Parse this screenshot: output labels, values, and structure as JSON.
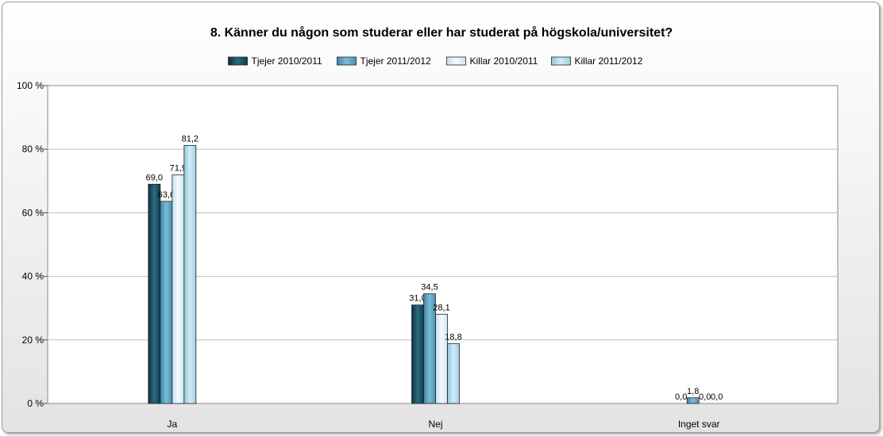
{
  "chart_data": {
    "type": "bar",
    "title": "8. Känner du någon som studerar eller har studerat på högskola/universitet?",
    "categories": [
      "Ja",
      "Nej",
      "Inget svar"
    ],
    "series": [
      {
        "name": "Tjejer 2010/2011",
        "values": [
          "69,0",
          "31,0",
          "0,0"
        ],
        "numeric": [
          69.0,
          31.0,
          0.0
        ],
        "color": "#1c4f63"
      },
      {
        "name": "Tjejer 2011/2012",
        "values": [
          "63,6",
          "34,5",
          "1,8"
        ],
        "numeric": [
          63.6,
          34.5,
          1.8
        ],
        "color": "#5aa3c3"
      },
      {
        "name": "Killar 2010/2011",
        "values": [
          "71,9",
          "28,1",
          "0,0"
        ],
        "numeric": [
          71.9,
          28.1,
          0.0
        ],
        "color": "#dcecf4"
      },
      {
        "name": "Killar 2011/2012",
        "values": [
          "81,2",
          "18,8",
          "0,0"
        ],
        "numeric": [
          81.2,
          18.8,
          0.0
        ],
        "color": "#aed6e8"
      }
    ],
    "y_ticks": [
      "0 %",
      "20 %",
      "40 %",
      "60 %",
      "80 %",
      "100 %"
    ],
    "ylim": [
      0,
      100
    ],
    "xlabel": "",
    "ylabel": "",
    "legend_position": "top",
    "grid": true
  }
}
